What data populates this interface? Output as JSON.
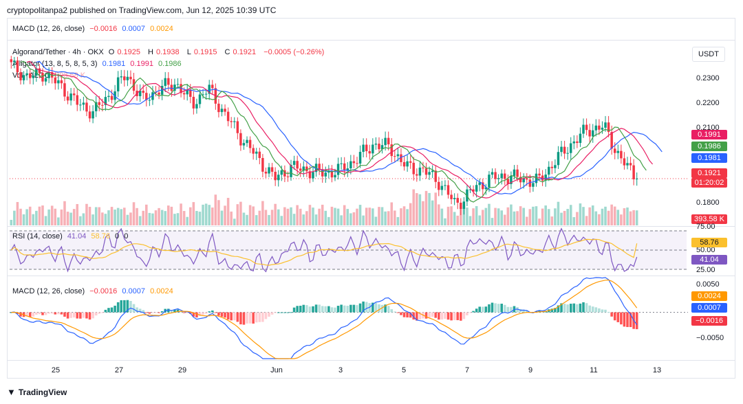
{
  "header": {
    "published": "cryptopolitanpa2 published on TradingView.com, Jun 12, 2025 10:39 UTC"
  },
  "top_legend": {
    "label": "MACD (12, 26, close)",
    "v1": "−0.0016",
    "v2": "0.0007",
    "v3": "0.0024"
  },
  "price_legend": {
    "symbol": "Algorand/Tether · 4h · OKX",
    "o_label": "O",
    "o": "0.1925",
    "h_label": "H",
    "h": "0.1938",
    "l_label": "L",
    "l": "0.1915",
    "c_label": "C",
    "c": "0.1921",
    "change": "−0.0005 (−0.26%)",
    "alligator": "Alligator (13, 8, 5, 8, 5, 3)",
    "jaw": "0.1981",
    "teeth": "0.1991",
    "lips": "0.1986",
    "vol": "Vol · ALGO",
    "vol_value": "393.58 K"
  },
  "rsi_legend": {
    "label": "RSI (14, close)",
    "rsi": "41.04",
    "ma": "58.76",
    "z1": "0",
    "z2": "0"
  },
  "macd_legend": {
    "label": "MACD (12, 26, close)",
    "v1": "−0.0016",
    "v2": "0.0007",
    "v3": "0.0024"
  },
  "currency": "USDT",
  "price_axis": [
    "0.2300",
    "0.2200",
    "0.2100",
    "0.1800"
  ],
  "price_badges": [
    {
      "text": "0.1991",
      "color": "#e91e63"
    },
    {
      "text": "0.1986",
      "color": "#43a047"
    },
    {
      "text": "0.1981",
      "color": "#2962ff"
    },
    {
      "text": "0.1921",
      "color": "#f23645"
    },
    {
      "text": "01:20:02",
      "color": "#f23645"
    }
  ],
  "volume_badge": "393.58 K",
  "rsi_axis": {
    "top": "75.00",
    "mid": "50.00",
    "bottom": "25.00",
    "ma_badge": "58.76",
    "rsi_badge": "41.04"
  },
  "macd_axis": {
    "top": "0.0050",
    "bottom": "−0.0050",
    "b1": "0.0024",
    "b2": "0.0007",
    "b3": "−0.0016"
  },
  "dates": [
    "25",
    "27",
    "29",
    "Jun",
    "3",
    "5",
    "7",
    "9",
    "11",
    "13"
  ],
  "footer": "TradingView",
  "chart_data": {
    "type": "candlestick",
    "title": "Algorand/Tether · 4h · OKX",
    "ylim": [
      0.176,
      0.238
    ],
    "x_ticks": [
      "25",
      "27",
      "29",
      "Jun",
      "3",
      "5",
      "7",
      "9",
      "11",
      "13"
    ],
    "close_anchors": [
      0.231,
      0.227,
      0.2285,
      0.224,
      0.218,
      0.215,
      0.221,
      0.228,
      0.219,
      0.223,
      0.225,
      0.218,
      0.223,
      0.214,
      0.206,
      0.199,
      0.192,
      0.196,
      0.195,
      0.194,
      0.195,
      0.199,
      0.204,
      0.203,
      0.196,
      0.195,
      0.191,
      0.183,
      0.188,
      0.192,
      0.193,
      0.192,
      0.191,
      0.198,
      0.204,
      0.209,
      0.21,
      0.199,
      0.1921
    ],
    "alligator": {
      "jaw": 0.1981,
      "teeth": 0.1991,
      "lips": 0.1986
    },
    "rsi": {
      "last": 41.04,
      "ma": 58.76,
      "levels": [
        25,
        50,
        75
      ]
    },
    "macd": {
      "macd": 0.0007,
      "signal": 0.0024,
      "histogram": -0.0016,
      "ylim": [
        -0.008,
        0.006
      ]
    }
  }
}
